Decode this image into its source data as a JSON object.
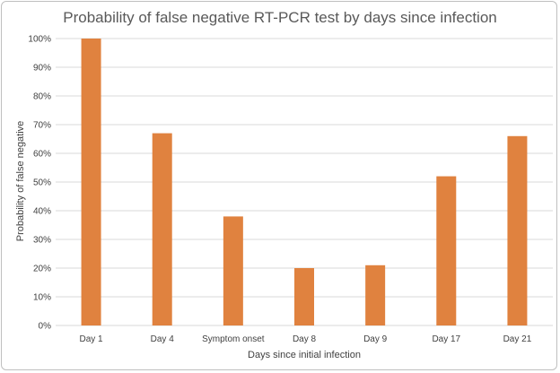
{
  "chart_data": {
    "type": "bar",
    "title": "Probability of false negative RT-PCR test by days since infection",
    "xlabel": "Days since initial infection",
    "ylabel": "Probability of false negative",
    "categories": [
      "Day 1",
      "Day 4",
      "Symptom onset",
      "Day 8",
      "Day 9",
      "Day 17",
      "Day 21"
    ],
    "values": [
      100,
      67,
      38,
      20,
      21,
      52,
      66
    ],
    "ylim": [
      0,
      100
    ],
    "yticks": [
      "0%",
      "10%",
      "20%",
      "30%",
      "40%",
      "50%",
      "60%",
      "70%",
      "80%",
      "90%",
      "100%"
    ],
    "grid": true,
    "legend": "none",
    "colors": {
      "bar": "#e0823f",
      "grid": "#d9d9d9",
      "title": "#595959"
    }
  }
}
